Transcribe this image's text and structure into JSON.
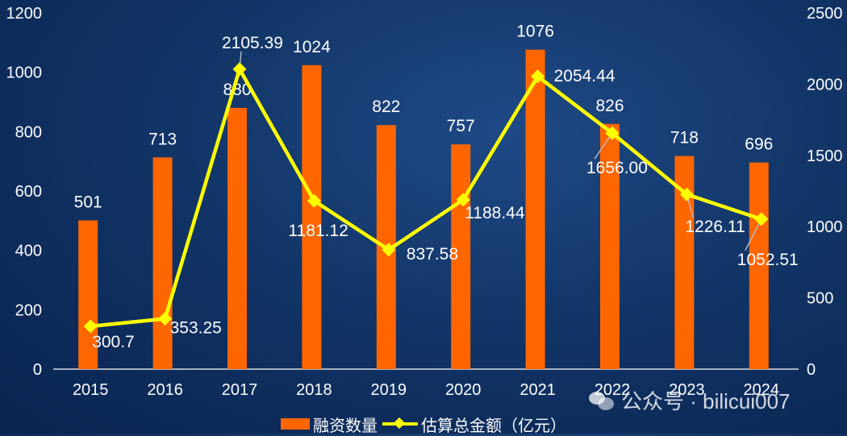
{
  "chart_data": {
    "type": "bar+line",
    "categories": [
      "2015",
      "2016",
      "2017",
      "2018",
      "2019",
      "2020",
      "2021",
      "2022",
      "2023",
      "2024"
    ],
    "series": [
      {
        "name": "融资数量",
        "type": "bar",
        "axis": "left",
        "color": "#ff6600",
        "values": [
          501,
          713,
          880,
          1024,
          822,
          757,
          1076,
          826,
          718,
          696
        ],
        "labels": [
          "501",
          "713",
          "880",
          "1024",
          "822",
          "757",
          "1076",
          "826",
          "718",
          "696"
        ]
      },
      {
        "name": "估算总金额（亿元）",
        "type": "line",
        "axis": "right",
        "color": "#ffff00",
        "values": [
          300.7,
          353.25,
          2105.39,
          1181.12,
          837.58,
          1188.44,
          2054.44,
          1656.0,
          1226.11,
          1052.51
        ],
        "labels": [
          "300.7",
          "353.25",
          "2105.39",
          "1181.12",
          "837.58",
          "1188.44",
          "2054.44",
          "1656.00",
          "1226.11",
          "1052.51"
        ]
      }
    ],
    "y_left": {
      "ylim": [
        0,
        1200
      ],
      "ticks": [
        "0",
        "200",
        "400",
        "600",
        "800",
        "1000",
        "1200"
      ]
    },
    "y_right": {
      "ylim": [
        0,
        2500
      ],
      "ticks": [
        "0",
        "500",
        "1000",
        "1500",
        "2000",
        "2500"
      ]
    },
    "legend_position": "bottom-center",
    "grid": false
  },
  "legend": {
    "bar_label": "融资数量",
    "line_label": "估算总金额（亿元）"
  },
  "watermark": {
    "text": "公众号 · bilicui007",
    "icon": "wechat-icon"
  }
}
